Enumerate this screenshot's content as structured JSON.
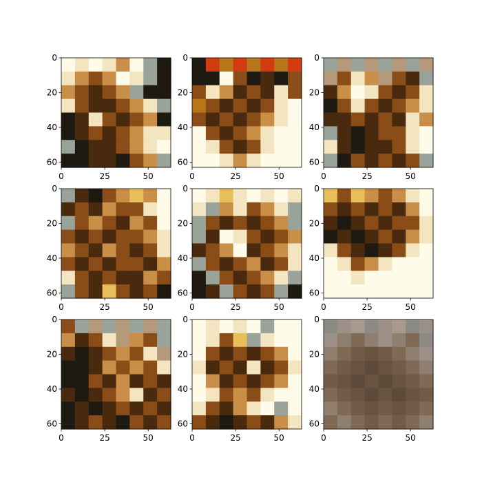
{
  "chart_data": [
    {
      "type": "heatmap",
      "title": "",
      "xlabel": "",
      "ylabel": "",
      "xlim": [
        0,
        63
      ],
      "ylim": [
        63,
        0
      ],
      "x_ticks": [
        "0",
        "25",
        "50"
      ],
      "y_ticks": [
        "0",
        "20",
        "40",
        "60"
      ],
      "palette": [
        "#fffbe9",
        "#f3e5bf",
        "#c98f48",
        "#8a4d17",
        "#4a2a0e",
        "#1e1a12",
        "#9aa39a",
        "#e8c05a"
      ],
      "tone_by_row": [
        [
          0,
          1,
          0,
          1,
          2,
          0,
          6,
          5
        ],
        [
          1,
          2,
          3,
          2,
          0,
          1,
          6,
          5
        ],
        [
          2,
          3,
          4,
          3,
          2,
          6,
          5,
          5
        ],
        [
          1,
          3,
          4,
          4,
          3,
          2,
          1,
          6
        ],
        [
          5,
          4,
          1,
          3,
          4,
          3,
          2,
          5
        ],
        [
          5,
          4,
          3,
          4,
          3,
          2,
          1,
          1
        ],
        [
          6,
          5,
          4,
          4,
          3,
          2,
          1,
          0
        ],
        [
          5,
          5,
          4,
          4,
          5,
          3,
          2,
          6
        ]
      ]
    },
    {
      "type": "heatmap",
      "title": "",
      "xlabel": "",
      "ylabel": "",
      "xlim": [
        0,
        63
      ],
      "ylim": [
        63,
        0
      ],
      "x_ticks": [
        "0",
        "25",
        "50"
      ],
      "y_ticks": [
        "0",
        "20",
        "40",
        "60"
      ],
      "palette": [
        "#fffbe9",
        "#f3e5bf",
        "#c98f48",
        "#8a4d17",
        "#4a2a0e",
        "#1e1a12",
        "#b8761a",
        "#d23a12"
      ],
      "tone_by_row": [
        [
          5,
          7,
          6,
          7,
          6,
          7,
          6,
          7
        ],
        [
          5,
          5,
          0,
          3,
          5,
          4,
          5,
          3
        ],
        [
          3,
          1,
          2,
          4,
          3,
          4,
          1,
          3
        ],
        [
          6,
          3,
          4,
          3,
          4,
          3,
          1,
          0
        ],
        [
          3,
          4,
          3,
          4,
          3,
          2,
          1,
          0
        ],
        [
          0,
          3,
          4,
          3,
          2,
          1,
          0,
          0
        ],
        [
          0,
          1,
          3,
          4,
          3,
          1,
          0,
          0
        ],
        [
          0,
          0,
          1,
          2,
          1,
          0,
          0,
          0
        ]
      ]
    },
    {
      "type": "heatmap",
      "title": "",
      "xlabel": "",
      "ylabel": "",
      "xlim": [
        0,
        63
      ],
      "ylim": [
        63,
        0
      ],
      "x_ticks": [
        "0",
        "25",
        "50"
      ],
      "y_ticks": [
        "0",
        "20",
        "40",
        "60"
      ],
      "palette": [
        "#fffbe9",
        "#f3e5bf",
        "#c98f48",
        "#8a4d17",
        "#4a2a0e",
        "#1e1a12",
        "#9aa39a",
        "#b49a7a"
      ],
      "tone_by_row": [
        [
          6,
          7,
          6,
          7,
          6,
          7,
          6,
          7
        ],
        [
          7,
          3,
          1,
          2,
          7,
          3,
          4,
          6
        ],
        [
          4,
          2,
          0,
          1,
          3,
          4,
          3,
          1
        ],
        [
          5,
          3,
          1,
          3,
          4,
          3,
          2,
          1
        ],
        [
          4,
          4,
          3,
          4,
          3,
          4,
          1,
          2
        ],
        [
          6,
          4,
          5,
          4,
          3,
          3,
          1,
          0
        ],
        [
          1,
          4,
          5,
          4,
          4,
          3,
          1,
          0
        ],
        [
          6,
          5,
          3,
          4,
          3,
          4,
          3,
          6
        ]
      ]
    },
    {
      "type": "heatmap",
      "title": "",
      "xlabel": "",
      "ylabel": "",
      "xlim": [
        0,
        63
      ],
      "ylim": [
        63,
        0
      ],
      "x_ticks": [
        "0",
        "25",
        "50"
      ],
      "y_ticks": [
        "0",
        "20",
        "40",
        "60"
      ],
      "palette": [
        "#fffbe9",
        "#f3e5bf",
        "#c98f48",
        "#8a4d17",
        "#4a2a0e",
        "#1e1a12",
        "#9aa39a",
        "#e8c05a"
      ],
      "tone_by_row": [
        [
          6,
          4,
          5,
          3,
          2,
          7,
          2,
          0
        ],
        [
          4,
          3,
          4,
          2,
          3,
          3,
          1,
          0
        ],
        [
          6,
          3,
          2,
          3,
          4,
          2,
          3,
          0
        ],
        [
          3,
          4,
          3,
          4,
          3,
          3,
          2,
          1
        ],
        [
          2,
          3,
          4,
          2,
          3,
          4,
          3,
          1
        ],
        [
          3,
          4,
          3,
          4,
          3,
          3,
          4,
          2
        ],
        [
          1,
          3,
          4,
          3,
          4,
          4,
          2,
          3
        ],
        [
          6,
          3,
          4,
          7,
          3,
          4,
          3,
          5
        ]
      ]
    },
    {
      "type": "heatmap",
      "title": "",
      "xlabel": "",
      "ylabel": "",
      "xlim": [
        0,
        63
      ],
      "ylim": [
        63,
        0
      ],
      "x_ticks": [
        "0",
        "25",
        "50"
      ],
      "y_ticks": [
        "0",
        "20",
        "40",
        "60"
      ],
      "palette": [
        "#fffbe9",
        "#f3e5bf",
        "#c98f48",
        "#8a4d17",
        "#4a2a0e",
        "#1e1a12",
        "#9aa39a",
        "#e8c05a"
      ],
      "tone_by_row": [
        [
          0,
          1,
          7,
          1,
          0,
          1,
          0,
          1
        ],
        [
          1,
          6,
          2,
          1,
          3,
          2,
          1,
          6
        ],
        [
          6,
          3,
          4,
          3,
          4,
          3,
          2,
          6
        ],
        [
          6,
          4,
          0,
          1,
          3,
          4,
          3,
          2
        ],
        [
          4,
          3,
          2,
          0,
          4,
          3,
          2,
          1
        ],
        [
          6,
          3,
          4,
          3,
          2,
          4,
          3,
          1
        ],
        [
          5,
          6,
          3,
          4,
          3,
          2,
          1,
          6
        ],
        [
          5,
          4,
          6,
          3,
          4,
          3,
          6,
          5
        ]
      ]
    },
    {
      "type": "heatmap",
      "title": "",
      "xlabel": "",
      "ylabel": "",
      "xlim": [
        0,
        63
      ],
      "ylim": [
        63,
        0
      ],
      "x_ticks": [
        "0",
        "25",
        "50"
      ],
      "y_ticks": [
        "0",
        "20",
        "40",
        "60"
      ],
      "palette": [
        "#fffbe9",
        "#f3e5bf",
        "#c98f48",
        "#8a4d17",
        "#4a2a0e",
        "#1e1a12",
        "#9aa39a",
        "#e8c05a"
      ],
      "tone_by_row": [
        [
          7,
          3,
          7,
          2,
          3,
          2,
          1,
          0
        ],
        [
          3,
          4,
          3,
          4,
          3,
          4,
          2,
          0
        ],
        [
          4,
          5,
          4,
          3,
          4,
          3,
          3,
          1
        ],
        [
          5,
          4,
          5,
          4,
          3,
          4,
          2,
          1
        ],
        [
          1,
          3,
          4,
          5,
          4,
          3,
          1,
          0
        ],
        [
          0,
          1,
          3,
          2,
          1,
          0,
          0,
          0
        ],
        [
          0,
          0,
          1,
          0,
          0,
          0,
          0,
          0
        ],
        [
          0,
          0,
          0,
          0,
          0,
          0,
          0,
          0
        ]
      ]
    },
    {
      "type": "heatmap",
      "title": "",
      "xlabel": "",
      "ylabel": "",
      "xlim": [
        0,
        63
      ],
      "ylim": [
        63,
        0
      ],
      "x_ticks": [
        "0",
        "25",
        "50"
      ],
      "y_ticks": [
        "0",
        "20",
        "40",
        "60"
      ],
      "palette": [
        "#fffbe9",
        "#f3e5bf",
        "#c98f48",
        "#8a4d17",
        "#4a2a0e",
        "#1e1a12",
        "#9aa39a",
        "#b49a7a"
      ],
      "tone_by_row": [
        [
          3,
          6,
          7,
          6,
          7,
          6,
          7,
          6
        ],
        [
          2,
          4,
          3,
          1,
          7,
          2,
          3,
          6
        ],
        [
          4,
          5,
          4,
          3,
          2,
          3,
          1,
          7
        ],
        [
          5,
          5,
          4,
          2,
          3,
          2,
          3,
          1
        ],
        [
          5,
          5,
          3,
          4,
          2,
          4,
          3,
          4
        ],
        [
          4,
          5,
          4,
          3,
          2,
          1,
          4,
          3
        ],
        [
          5,
          4,
          5,
          4,
          3,
          4,
          3,
          4
        ],
        [
          5,
          4,
          3,
          4,
          5,
          3,
          4,
          3
        ]
      ]
    },
    {
      "type": "heatmap",
      "title": "",
      "xlabel": "",
      "ylabel": "",
      "xlim": [
        0,
        63
      ],
      "ylim": [
        63,
        0
      ],
      "x_ticks": [
        "0",
        "25",
        "50"
      ],
      "y_ticks": [
        "0",
        "20",
        "40",
        "60"
      ],
      "palette": [
        "#fffbe9",
        "#f3e5bf",
        "#c98f48",
        "#8a4d17",
        "#4a2a0e",
        "#1e1a12",
        "#9aa39a",
        "#e8c05a"
      ],
      "tone_by_row": [
        [
          0,
          1,
          0,
          1,
          0,
          6,
          0,
          0
        ],
        [
          0,
          1,
          3,
          7,
          6,
          1,
          0,
          0
        ],
        [
          0,
          3,
          4,
          3,
          4,
          3,
          2,
          0
        ],
        [
          1,
          4,
          3,
          4,
          1,
          4,
          3,
          1
        ],
        [
          0,
          2,
          4,
          3,
          4,
          3,
          2,
          0
        ],
        [
          0,
          1,
          3,
          2,
          3,
          1,
          0,
          0
        ],
        [
          1,
          3,
          4,
          2,
          1,
          0,
          6,
          0
        ],
        [
          3,
          4,
          5,
          4,
          3,
          4,
          2,
          1
        ]
      ]
    },
    {
      "type": "heatmap",
      "title": "",
      "xlabel": "",
      "ylabel": "",
      "xlim": [
        0,
        63
      ],
      "ylim": [
        63,
        0
      ],
      "x_ticks": [
        "0",
        "25",
        "50"
      ],
      "y_ticks": [
        "0",
        "20",
        "40",
        "60"
      ],
      "palette": [
        "#9d9088",
        "#8f7f70",
        "#806a55",
        "#725c48",
        "#6a5440",
        "#5c4a3a",
        "#8c8a84",
        "#a89a8c"
      ],
      "tone_by_row": [
        [
          6,
          0,
          7,
          6,
          0,
          7,
          6,
          0
        ],
        [
          0,
          1,
          2,
          1,
          0,
          1,
          2,
          6
        ],
        [
          1,
          2,
          3,
          4,
          3,
          2,
          1,
          0
        ],
        [
          2,
          3,
          4,
          5,
          4,
          3,
          2,
          1
        ],
        [
          3,
          4,
          5,
          4,
          5,
          4,
          3,
          2
        ],
        [
          2,
          3,
          4,
          5,
          4,
          5,
          4,
          3
        ],
        [
          1,
          2,
          3,
          4,
          3,
          4,
          3,
          2
        ],
        [
          2,
          1,
          2,
          3,
          2,
          3,
          2,
          1
        ]
      ]
    }
  ]
}
